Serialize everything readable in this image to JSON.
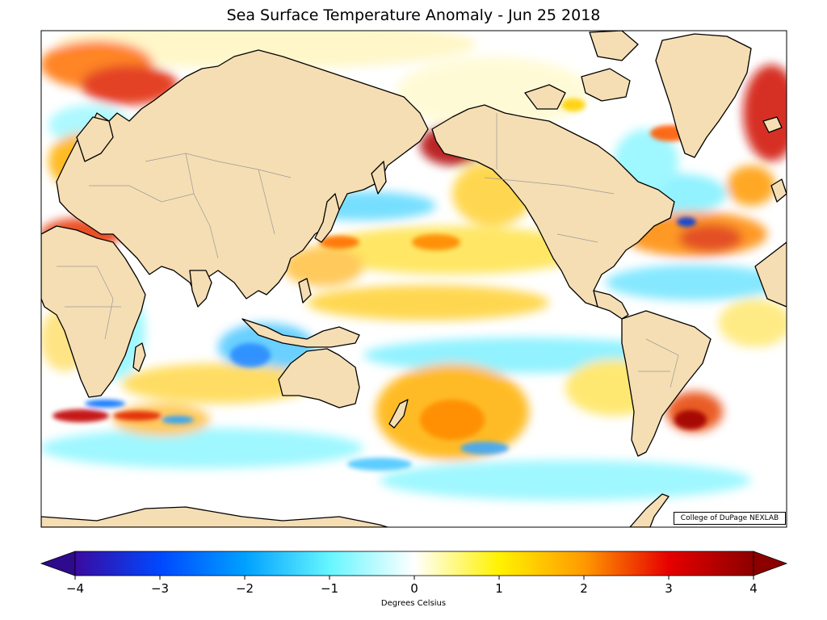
{
  "title": "Sea Surface Temperature Anomaly - Jun 25 2018",
  "credit": "College of DuPage NEXLAB",
  "colorbar": {
    "label": "Degrees Celsius",
    "ticks": [
      "−4",
      "−3",
      "−2",
      "−1",
      "0",
      "1",
      "2",
      "3",
      "4"
    ],
    "min": -4,
    "max": 4
  },
  "colors": {
    "land": "#f5deb3",
    "coast": "#000000",
    "border": "#9a9a9a",
    "scale": [
      "#2e0a9e",
      "#0046ff",
      "#00aaff",
      "#7ff8ff",
      "#ffffff",
      "#fff200",
      "#ff9900",
      "#e60000",
      "#8c0000"
    ]
  }
}
